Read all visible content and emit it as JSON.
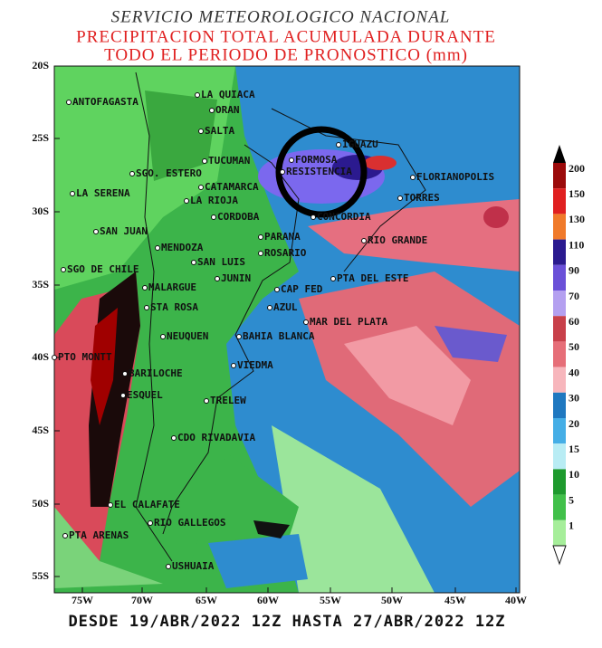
{
  "header": {
    "lines": [
      "SERVICIO METEOROLOGICO NACIONAL",
      "PRECIPITACION TOTAL ACUMULADA DURANTE",
      "TODO EL PERIODO DE PRONOSTICO (mm)"
    ]
  },
  "map": {
    "lat_labels": [
      "20S",
      "25S",
      "30S",
      "35S",
      "40S",
      "45S",
      "50S",
      "55S"
    ],
    "lon_labels": [
      "75W",
      "70W",
      "65W",
      "60W",
      "55W",
      "50W",
      "45W",
      "40W"
    ],
    "cities": [
      "ANTOFAGASTA",
      "LA QUIACA",
      "ORAN",
      "SALTA",
      "TUCUMAN",
      "IGUAZU",
      "FORMOSA",
      "SGO. ESTERO",
      "RESISTENCIA",
      "FLORIANOPOLIS",
      "CATAMARCA",
      "LA SERENA",
      "LA RIOJA",
      "TORRES",
      "CORDOBA",
      "CONCORDIA",
      "SAN JUAN",
      "PARANA",
      "RIO GRANDE",
      "MENDOZA",
      "ROSARIO",
      "SAN LUIS",
      "SGO DE CHILE",
      "JUNIN",
      "PTA DEL ESTE",
      "MALARGUE",
      "CAP FED",
      "STA ROSA",
      "AZUL",
      "MAR DEL PLATA",
      "NEUQUEN",
      "BAHIA BLANCA",
      "PTO MONTT",
      "VIEDMA",
      "BARILOCHE",
      "ESQUEL",
      "TRELEW",
      "CDO RIVADAVIA",
      "EL CALAFATE",
      "RIO GALLEGOS",
      "PTA ARENAS",
      "USHUAIA"
    ]
  },
  "legend": {
    "labels": [
      "200",
      "150",
      "130",
      "110",
      "90",
      "70",
      "60",
      "50",
      "40",
      "30",
      "20",
      "15",
      "10",
      "5",
      "1"
    ]
  },
  "footer": "DESDE 19/ABR/2022 12Z HASTA 27/ABR/2022 12Z"
}
